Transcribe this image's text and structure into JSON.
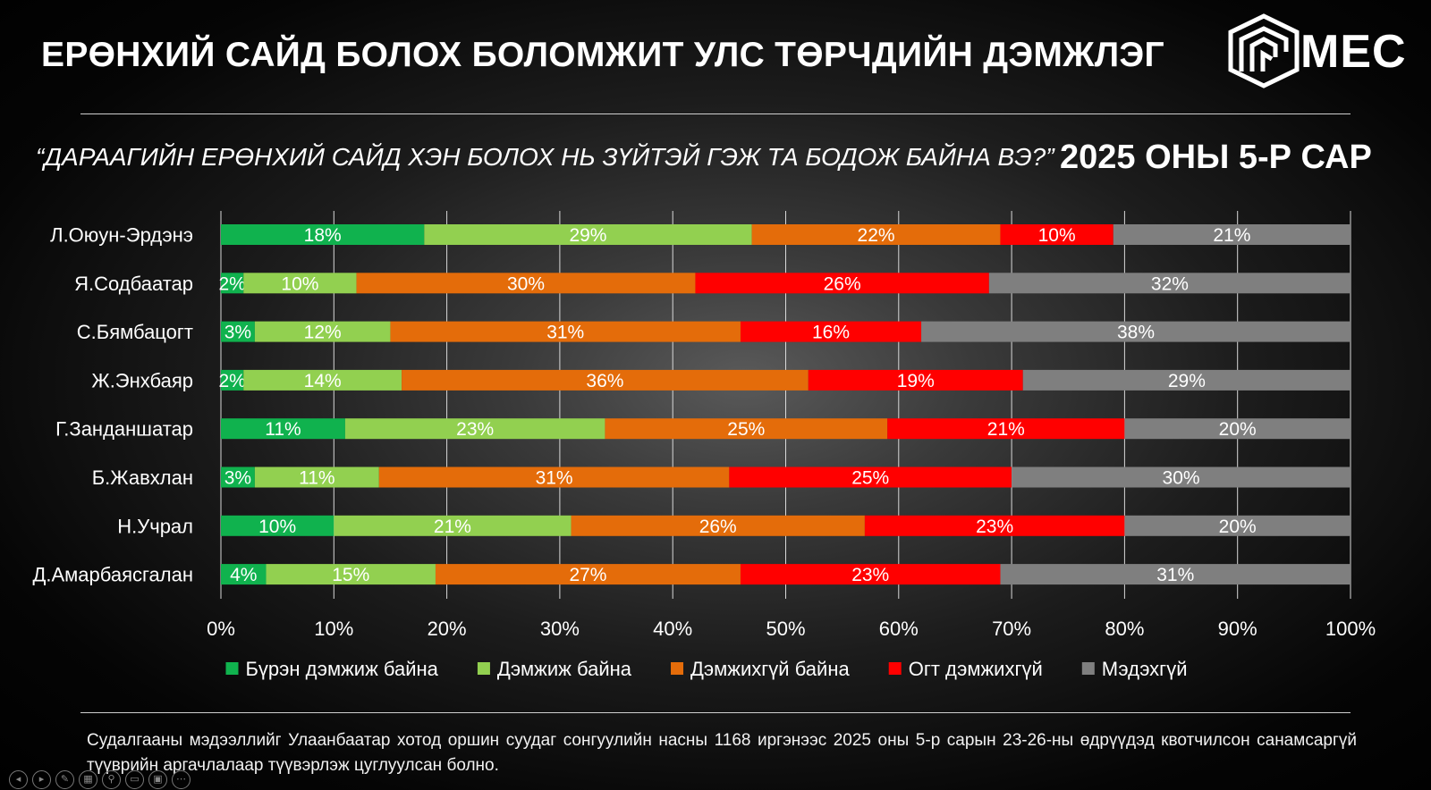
{
  "header": {
    "title": "ЕРӨНХИЙ САЙД БОЛОХ БОЛОМЖИТ УЛС ТӨРЧДИЙН ДЭМЖЛЭГ",
    "logo_text": "MEC"
  },
  "question": "“ДАРААГИЙН ЕРӨНХИЙ САЙД ХЭН БОЛОХ НЬ ЗҮЙТЭЙ ГЭЖ ТА БОДОЖ БАЙНА ВЭ?”",
  "period": "2025 ОНЫ 5-Р САР",
  "footnote": "Судалгааны мэдээллийг Улаанбаатар хотод оршин суудаг сонгуулийн насны 1168 иргэнээс 2025 оны 5-р сарын 23-26-ны өдрүүдэд квотчилсон санамсаргүй түүврийн аргачлалаар түүвэрлэж цуглуулсан болно.",
  "controls": [
    "prev-icon",
    "next-icon",
    "pen-icon",
    "slides-icon",
    "zoom-icon",
    "subtitles-icon",
    "screen-icon",
    "more-icon"
  ],
  "chart_data": {
    "type": "bar",
    "orientation": "horizontal",
    "stacked": "percent",
    "categories": [
      "Л.Оюун-Эрдэнэ",
      "Я.Содбаатар",
      "С.Бямбацогт",
      "Ж.Энхбаяр",
      "Г.Занданшатар",
      "Б.Жавхлан",
      "Н.Учрал",
      "Д.Амарбаясгалан"
    ],
    "series": [
      {
        "name": "Бүрэн дэмжиж байна",
        "color": "#10b24e",
        "values": [
          18,
          2,
          3,
          2,
          11,
          3,
          10,
          4
        ]
      },
      {
        "name": "Дэмжиж байна",
        "color": "#92d050",
        "values": [
          29,
          10,
          12,
          14,
          23,
          11,
          21,
          15
        ]
      },
      {
        "name": "Дэмжихгүй байна",
        "color": "#e46c0a",
        "values": [
          22,
          30,
          31,
          36,
          25,
          31,
          26,
          27
        ]
      },
      {
        "name": "Огт дэмжихгүй",
        "color": "#ff0000",
        "values": [
          10,
          26,
          16,
          19,
          21,
          25,
          23,
          23
        ]
      },
      {
        "name": "Мэдэхгүй",
        "color": "#7f7f7f",
        "values": [
          21,
          32,
          38,
          29,
          20,
          30,
          20,
          31
        ]
      }
    ],
    "x_ticks": [
      "0%",
      "10%",
      "20%",
      "30%",
      "40%",
      "50%",
      "60%",
      "70%",
      "80%",
      "90%",
      "100%"
    ],
    "xlim": [
      0,
      100
    ],
    "value_suffix": "%",
    "grid": true,
    "legend": "bottom"
  }
}
